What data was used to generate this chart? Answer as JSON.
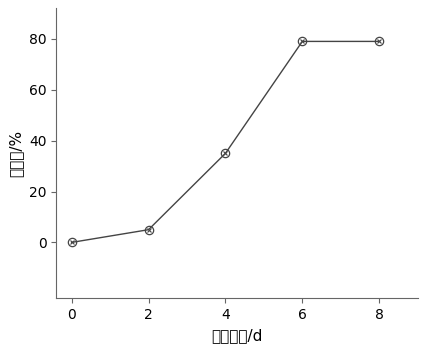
{
  "x": [
    0,
    2,
    4,
    6,
    8
  ],
  "y": [
    0,
    5,
    35,
    79,
    79
  ],
  "xlabel": "降解时间/d",
  "ylabel": "降解率/%",
  "xlim": [
    -0.4,
    9.0
  ],
  "ylim": [
    -22,
    92
  ],
  "xticks": [
    0,
    2,
    4,
    6,
    8
  ],
  "yticks": [
    0,
    20,
    40,
    60,
    80
  ],
  "line_color": "#444444",
  "marker_edgecolor": "#444444",
  "marker_size": 6,
  "line_width": 1.0,
  "background_color": "#ffffff",
  "axes_background": "#ffffff",
  "xlabel_fontsize": 11,
  "ylabel_fontsize": 11,
  "tick_fontsize": 10
}
